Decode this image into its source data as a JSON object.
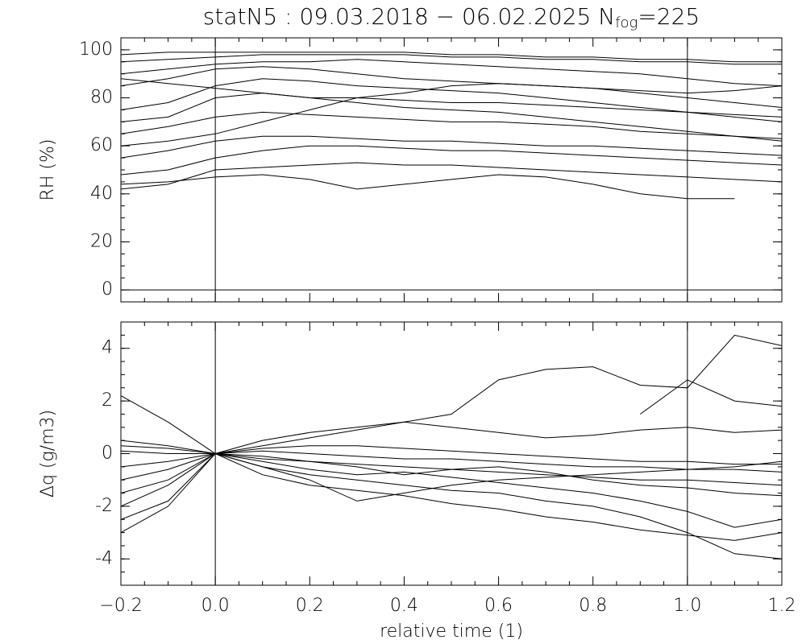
{
  "chart_data": [
    {
      "type": "line",
      "title": "statN5 : 09.03.2018 − 06.02.2025 N",
      "title_subscript": "fog",
      "title_suffix": "=225",
      "y_label": "RH (%)",
      "x": [
        -0.2,
        -0.1,
        0,
        0.1,
        0.2,
        0.3,
        0.4,
        0.5,
        0.6,
        0.7,
        0.8,
        0.9,
        1.0,
        1.1,
        1.2
      ],
      "xlim": [
        -0.2,
        1.2
      ],
      "ylim": [
        -5,
        105
      ],
      "xticks": [
        -0.2,
        0,
        0.2,
        0.4,
        0.6,
        0.8,
        1.0,
        1.2
      ],
      "show_xtick_labels": false,
      "yticks": [
        0,
        20,
        40,
        60,
        80,
        100
      ],
      "minor_divisions": 4,
      "vlines": [
        0,
        1
      ],
      "hlines": [
        0
      ],
      "series": [
        {
          "color": "#000000",
          "values": [
            95,
            96,
            97,
            98,
            98,
            98,
            98,
            97,
            97,
            96,
            96,
            95,
            95,
            94,
            94
          ]
        },
        {
          "color": "#000000",
          "values": [
            90,
            92,
            94,
            95,
            95,
            96,
            95,
            94,
            93,
            92,
            91,
            90,
            88,
            86,
            85
          ]
        },
        {
          "color": "#000000",
          "values": [
            85,
            88,
            92,
            93,
            92,
            90,
            88,
            87,
            86,
            85,
            84,
            82,
            80,
            78,
            76
          ]
        },
        {
          "color": "#000000",
          "values": [
            75,
            78,
            85,
            88,
            87,
            85,
            84,
            83,
            82,
            80,
            78,
            76,
            74,
            72,
            70
          ]
        },
        {
          "color": "#000000",
          "values": [
            70,
            72,
            80,
            82,
            80,
            78,
            76,
            75,
            74,
            72,
            70,
            68,
            66,
            64,
            62
          ]
        },
        {
          "color": "#000000",
          "values": [
            65,
            68,
            72,
            74,
            73,
            72,
            71,
            70,
            70,
            69,
            68,
            66,
            65,
            64,
            63
          ]
        },
        {
          "color": "#000000",
          "values": [
            55,
            58,
            62,
            64,
            64,
            63,
            62,
            62,
            61,
            60,
            60,
            59,
            58,
            57,
            56
          ]
        },
        {
          "color": "#000000",
          "values": [
            48,
            50,
            55,
            58,
            60,
            60,
            59,
            58,
            58,
            57,
            56,
            55,
            54,
            53,
            52
          ]
        },
        {
          "color": "#000000",
          "values": [
            44,
            45,
            47,
            48,
            46,
            42,
            44,
            46,
            48,
            47,
            44,
            40,
            38,
            38,
            null
          ]
        },
        {
          "color": "#000000",
          "values": [
            42,
            44,
            50,
            51,
            52,
            53,
            52,
            52,
            51,
            50,
            49,
            48,
            47,
            46,
            45
          ]
        },
        {
          "color": "#000000",
          "values": [
            98,
            99,
            99,
            99,
            99,
            99,
            99,
            98,
            98,
            97,
            97,
            96,
            96,
            95,
            95
          ]
        },
        {
          "color": "#000000",
          "values": [
            88,
            86,
            84,
            82,
            80,
            80,
            79,
            78,
            78,
            77,
            76,
            75,
            74,
            73,
            72
          ]
        },
        {
          "color": "#000000",
          "values": [
            60,
            62,
            65,
            70,
            75,
            80,
            82,
            85,
            86,
            85,
            84,
            83,
            82,
            83,
            85
          ]
        }
      ]
    },
    {
      "type": "line",
      "y_label": "Δq (g/m3)",
      "x_label": "relative time (1)",
      "x": [
        -0.2,
        -0.1,
        0,
        0.1,
        0.2,
        0.3,
        0.4,
        0.5,
        0.6,
        0.7,
        0.8,
        0.9,
        1.0,
        1.1,
        1.2
      ],
      "xlim": [
        -0.2,
        1.2
      ],
      "ylim": [
        -5,
        5
      ],
      "xticks": [
        {
          "value": -0.2,
          "label": "−0.2"
        },
        {
          "value": 0,
          "label": "0.0"
        },
        0.2,
        0.4,
        0.6,
        0.8,
        {
          "value": 1.0,
          "label": "1.0"
        },
        1.2
      ],
      "show_xtick_labels": true,
      "yticks": [
        -4,
        -2,
        0,
        2,
        4
      ],
      "minor_divisions": 4,
      "vlines": [
        0,
        1
      ],
      "series": [
        {
          "color": "#000000",
          "values": [
            -0.5,
            -0.3,
            0,
            0.2,
            0.3,
            0.3,
            0.2,
            0.1,
            0.0,
            -0.1,
            -0.2,
            -0.3,
            -0.3,
            -0.4,
            -0.4
          ]
        },
        {
          "color": "#000000",
          "values": [
            0.3,
            0.2,
            0,
            -0.2,
            -0.3,
            -0.4,
            -0.5,
            -0.6,
            -0.7,
            -0.8,
            -0.9,
            -1.0,
            -1.0,
            -1.1,
            -1.2
          ]
        },
        {
          "color": "#000000",
          "values": [
            -2,
            -1.2,
            0,
            0.5,
            0.8,
            1,
            1.2,
            1.5,
            2.8,
            3.2,
            3.3,
            2.6,
            2.5,
            4.5,
            4.1
          ]
        },
        {
          "color": "#000000",
          "values": [
            2.2,
            1.2,
            0,
            -0.5,
            -0.8,
            -1,
            -1.2,
            -1.4,
            -1.5,
            -1.8,
            -2.0,
            -2.4,
            -3.0,
            -3.8,
            -4.0
          ]
        },
        {
          "color": "#000000",
          "values": [
            -1.5,
            -1,
            0,
            -0.3,
            -0.6,
            -0.8,
            -0.7,
            -0.9,
            -1.1,
            -1.3,
            -1.5,
            -1.8,
            -2.2,
            -2.8,
            -2.5
          ]
        },
        {
          "color": "#000000",
          "values": [
            0.5,
            0.3,
            0,
            0.3,
            0.6,
            0.9,
            1.2,
            1.0,
            0.8,
            0.6,
            0.7,
            0.9,
            1.0,
            0.8,
            0.9
          ]
        },
        {
          "color": "#000000",
          "values": [
            -2.5,
            -1.8,
            0,
            -0.5,
            -1.0,
            -1.8,
            -1.5,
            -1.2,
            -1.0,
            -0.9,
            -0.8,
            -0.7,
            -0.6,
            -0.5,
            -0.3
          ]
        },
        {
          "color": "#000000",
          "values": [
            -1.0,
            -0.6,
            0,
            -0.1,
            -0.3,
            -0.5,
            -0.8,
            -0.6,
            -0.5,
            -0.7,
            -1.0,
            -1.2,
            -1.3,
            -1.5,
            -1.6
          ]
        },
        {
          "color": "#000000",
          "values": [
            0.1,
            0.0,
            0,
            0.1,
            0.0,
            -0.1,
            -0.2,
            -0.2,
            -0.3,
            -0.4,
            -0.5,
            -0.5,
            -0.6,
            -0.6,
            -0.7
          ]
        },
        {
          "color": "#000000",
          "values": [
            null,
            null,
            null,
            null,
            null,
            null,
            null,
            null,
            null,
            null,
            null,
            1.5,
            2.8,
            2.0,
            1.8
          ]
        },
        {
          "color": "#000000",
          "values": [
            -3,
            -2,
            0,
            -0.8,
            -1.2,
            -1.4,
            -1.6,
            -1.9,
            -2.1,
            -2.4,
            -2.6,
            -2.9,
            -3.1,
            -3.3,
            -3.0
          ]
        }
      ]
    }
  ]
}
